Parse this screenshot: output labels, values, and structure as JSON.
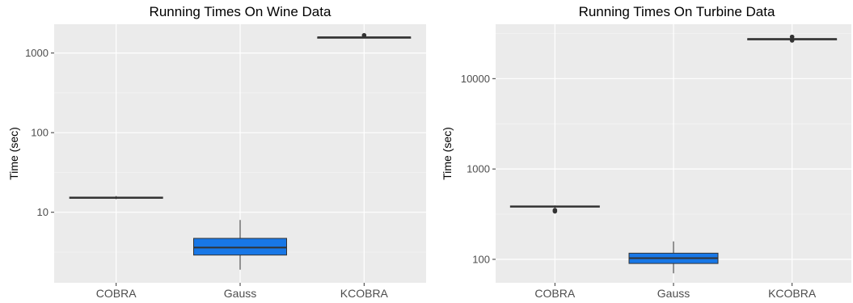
{
  "chart_data": [
    {
      "type": "boxplot",
      "title": "Running Times On Wine Data",
      "xlabel": "",
      "ylabel": "Time (sec)",
      "yscale": "log10",
      "ylim": [
        1.3,
        2300
      ],
      "yticks": [
        10,
        100,
        1000
      ],
      "ytick_labels": [
        "10",
        "100",
        "1000"
      ],
      "categories": [
        "COBRA",
        "Gauss",
        "KCOBRA"
      ],
      "boxes": [
        {
          "category": "COBRA",
          "min": 14.6,
          "q1": 15.0,
          "median": 15.2,
          "q3": 15.5,
          "max": 16.0,
          "outliers": [],
          "fill": "#595959"
        },
        {
          "category": "Gauss",
          "min": 1.9,
          "q1": 2.9,
          "median": 3.6,
          "q3": 4.7,
          "max": 8.0,
          "outliers": [],
          "fill": "#1877e6"
        },
        {
          "category": "KCOBRA",
          "min": 1560,
          "q1": 1570,
          "median": 1580,
          "q3": 1590,
          "max": 1600,
          "outliers": [
            1670
          ],
          "fill": "#595959"
        }
      ],
      "grid": true
    },
    {
      "type": "boxplot",
      "title": "Running Times On Turbine Data",
      "xlabel": "",
      "ylabel": "Time (sec)",
      "yscale": "log10",
      "ylim": [
        55,
        40000
      ],
      "yticks": [
        100,
        1000,
        10000
      ],
      "ytick_labels": [
        "100",
        "1000",
        "10000"
      ],
      "categories": [
        "COBRA",
        "Gauss",
        "KCOBRA"
      ],
      "boxes": [
        {
          "category": "COBRA",
          "min": 370,
          "q1": 380,
          "median": 385,
          "q3": 390,
          "max": 395,
          "outliers": [
            350,
            340
          ],
          "fill": "#595959"
        },
        {
          "category": "Gauss",
          "min": 70,
          "q1": 90,
          "median": 103,
          "q3": 117,
          "max": 158,
          "outliers": [],
          "fill": "#1877e6"
        },
        {
          "category": "KCOBRA",
          "min": 27000,
          "q1": 27300,
          "median": 27500,
          "q3": 27700,
          "max": 28000,
          "outliers": [
            26500,
            29000
          ],
          "fill": "#595959"
        }
      ],
      "grid": true
    }
  ]
}
